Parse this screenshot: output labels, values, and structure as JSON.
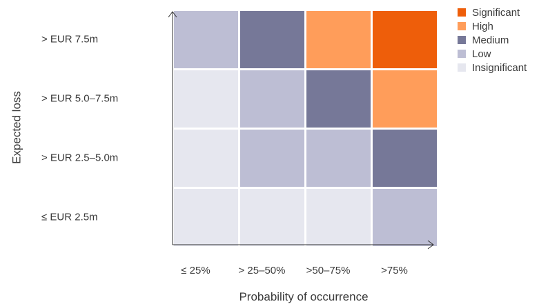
{
  "chart_data": {
    "type": "heatmap",
    "xlabel": "Probability of occurrence",
    "ylabel": "Expected loss",
    "x_categories": [
      "≤ 25%",
      "> 25–50%",
      ">50–75%",
      ">75%"
    ],
    "y_categories": [
      "> EUR 7.5m",
      "> EUR 5.0–7.5m",
      "> EUR 2.5–5.0m",
      "≤ EUR 2.5m"
    ],
    "levels": [
      {
        "name": "Significant",
        "color": "#EE5E0A"
      },
      {
        "name": "High",
        "color": "#FF9D5A"
      },
      {
        "name": "Medium",
        "color": "#767898"
      },
      {
        "name": "Low",
        "color": "#BDBED4"
      },
      {
        "name": "Insignificant",
        "color": "#E6E7EF"
      }
    ],
    "cells": [
      [
        "Low",
        "Medium",
        "High",
        "Significant"
      ],
      [
        "Insignificant",
        "Low",
        "Medium",
        "High"
      ],
      [
        "Insignificant",
        "Low",
        "Low",
        "Medium"
      ],
      [
        "Insignificant",
        "Insignificant",
        "Insignificant",
        "Low"
      ]
    ],
    "legend_position": "top-right",
    "grid": false
  }
}
